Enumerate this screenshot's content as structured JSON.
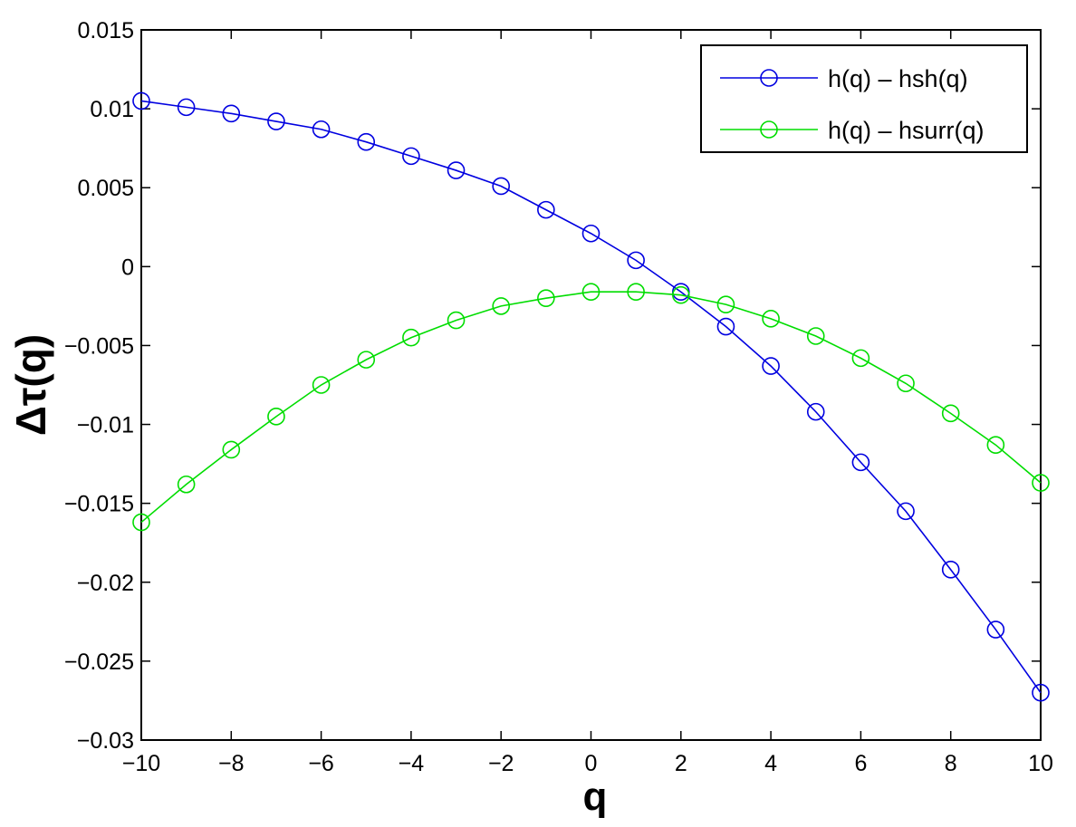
{
  "chart_data": {
    "type": "line",
    "title": "",
    "xlabel": "q",
    "ylabel": "Δτ(q)",
    "xlim": [
      -10,
      10
    ],
    "ylim": [
      -0.03,
      0.015
    ],
    "x_ticks": [
      -10,
      -8,
      -6,
      -4,
      -2,
      0,
      2,
      4,
      6,
      8,
      10
    ],
    "x_tick_labels": [
      "−10",
      "−8",
      "−6",
      "−4",
      "−2",
      "0",
      "2",
      "4",
      "6",
      "8",
      "10"
    ],
    "y_ticks": [
      0.015,
      0.01,
      0.005,
      0,
      -0.005,
      -0.01,
      -0.015,
      -0.02,
      -0.025,
      -0.03
    ],
    "y_tick_labels": [
      "0.015",
      "0.01",
      "0.005",
      "0",
      "−0.005",
      "−0.01",
      "−0.015",
      "−0.02",
      "−0.025",
      "−0.03"
    ],
    "grid": false,
    "legend_position": "top-right",
    "x": [
      -10,
      -9,
      -8,
      -7,
      -6,
      -5,
      -4,
      -3,
      -2,
      -1,
      0,
      1,
      2,
      3,
      4,
      5,
      6,
      7,
      8,
      9,
      10
    ],
    "series": [
      {
        "name": "h(q) – hsh(q)",
        "color": "#0000e0",
        "marker": "circle",
        "values": [
          0.0105,
          0.0101,
          0.0097,
          0.0092,
          0.0087,
          0.0079,
          0.007,
          0.0061,
          0.0051,
          0.0036,
          0.0021,
          0.0004,
          -0.0016,
          -0.0038,
          -0.0063,
          -0.0092,
          -0.0124,
          -0.0155,
          -0.0192,
          -0.023,
          -0.027
        ]
      },
      {
        "name": "h(q) – hsurr(q)",
        "color": "#00dd00",
        "marker": "circle",
        "values": [
          -0.0162,
          -0.0138,
          -0.0116,
          -0.0095,
          -0.0075,
          -0.0059,
          -0.0045,
          -0.0034,
          -0.0025,
          -0.002,
          -0.0016,
          -0.0016,
          -0.0018,
          -0.0024,
          -0.0033,
          -0.0044,
          -0.0058,
          -0.0074,
          -0.0093,
          -0.0113,
          -0.0137
        ]
      }
    ]
  }
}
